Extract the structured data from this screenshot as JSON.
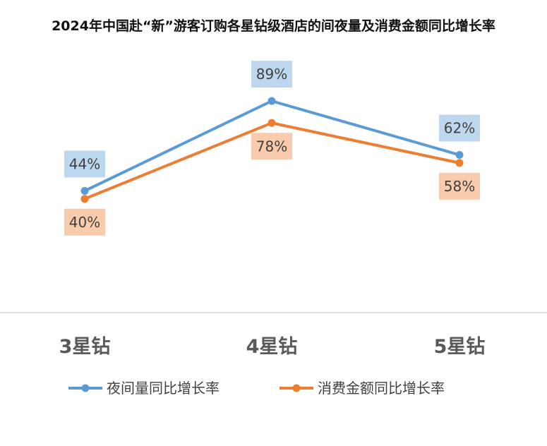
{
  "chart_data": {
    "type": "line",
    "title": "2024年中国赴“新”游客订购各星钻级酒店的间夜量及消费金额同比增长率",
    "categories": [
      "3星钻",
      "4星钻",
      "5星钻"
    ],
    "series": [
      {
        "name": "夜间量同比增长率",
        "values": [
          44,
          89,
          62
        ],
        "labels": [
          "44%",
          "89%",
          "62%"
        ],
        "color": "#5B9BD5",
        "label_bg": "#BDD7EE",
        "label_position": "above"
      },
      {
        "name": "消费金额同比增长率",
        "values": [
          40,
          78,
          58
        ],
        "labels": [
          "40%",
          "78%",
          "58%"
        ],
        "color": "#ED7D31",
        "label_bg": "#F8CBAD",
        "label_position": "below"
      }
    ],
    "ylim": [
      0,
      100
    ],
    "grid": false,
    "legend": "bottom"
  }
}
